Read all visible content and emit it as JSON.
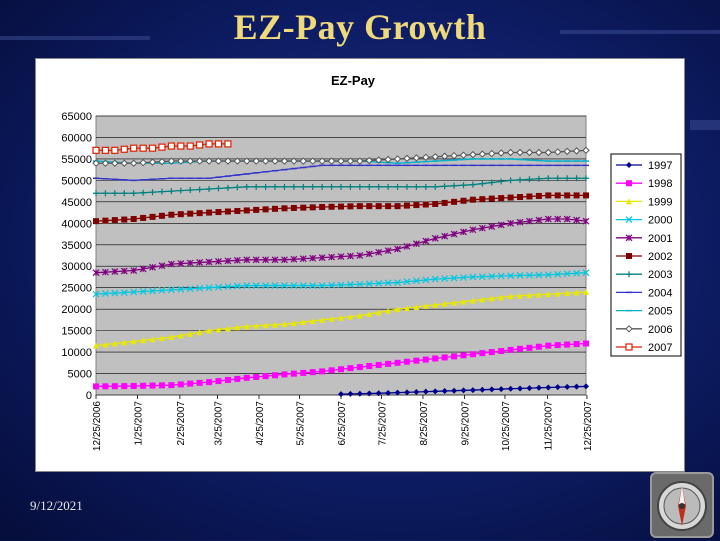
{
  "slide": {
    "title": "EZ-Pay Growth",
    "date": "9/12/2021"
  },
  "icons": {
    "compass": "compass-icon"
  },
  "chart_data": {
    "type": "line",
    "title": "EZ-Pay",
    "ylim": [
      0,
      65000
    ],
    "yticks": [
      0,
      5000,
      10000,
      15000,
      20000,
      25000,
      30000,
      35000,
      40000,
      45000,
      50000,
      55000,
      60000,
      65000
    ],
    "xlim": [
      0,
      52
    ],
    "x_tick_labels": [
      {
        "label": "12/25/2006",
        "x": 0
      },
      {
        "label": "1/25/2007",
        "x": 4.4
      },
      {
        "label": "2/25/2007",
        "x": 8.9
      },
      {
        "label": "3/25/2007",
        "x": 12.9
      },
      {
        "label": "4/25/2007",
        "x": 17.3
      },
      {
        "label": "5/25/2007",
        "x": 21.6
      },
      {
        "label": "6/25/2007",
        "x": 26
      },
      {
        "label": "7/25/2007",
        "x": 30.3
      },
      {
        "label": "8/25/2007",
        "x": 34.7
      },
      {
        "label": "9/25/2007",
        "x": 39.1
      },
      {
        "label": "10/25/2007",
        "x": 43.4
      },
      {
        "label": "11/25/2007",
        "x": 47.9
      },
      {
        "label": "12/25/2007",
        "x": 52.1
      }
    ],
    "plot_background": "#c0c0c0",
    "legend_position": "right",
    "series": [
      {
        "name": "1997",
        "color": "#00008b",
        "marker": "diamond",
        "x": [
          26,
          30,
          34,
          38,
          42,
          46,
          50,
          52
        ],
        "y": [
          200,
          400,
          700,
          1000,
          1300,
          1600,
          1900,
          2000
        ]
      },
      {
        "name": "1998",
        "color": "#ff00ff",
        "marker": "square",
        "x": [
          0,
          4,
          8,
          12,
          16,
          20,
          24,
          28,
          32,
          36,
          40,
          44,
          48,
          52
        ],
        "y": [
          2000,
          2100,
          2300,
          3000,
          4000,
          4800,
          5500,
          6500,
          7500,
          8500,
          9500,
          10500,
          11500,
          12000
        ]
      },
      {
        "name": "1999",
        "color": "#e8e800",
        "marker": "triangle",
        "x": [
          0,
          4,
          8,
          12,
          16,
          20,
          24,
          28,
          32,
          36,
          40,
          44,
          48,
          52
        ],
        "y": [
          11500,
          12500,
          13500,
          15000,
          16000,
          16500,
          17500,
          18500,
          20000,
          21000,
          22000,
          23000,
          23500,
          24000
        ]
      },
      {
        "name": "2000",
        "color": "#00c8e0",
        "marker": "x",
        "x": [
          0,
          4,
          8,
          12,
          16,
          20,
          24,
          28,
          32,
          36,
          40,
          44,
          48,
          52
        ],
        "y": [
          23500,
          24000,
          24500,
          25000,
          25500,
          25500,
          25500,
          25800,
          26200,
          27000,
          27500,
          27800,
          28000,
          28500
        ]
      },
      {
        "name": "2001",
        "color": "#800080",
        "marker": "star",
        "x": [
          0,
          4,
          8,
          12,
          16,
          20,
          24,
          28,
          32,
          36,
          40,
          44,
          48,
          50,
          52
        ],
        "y": [
          28500,
          29000,
          30500,
          31000,
          31500,
          31500,
          32000,
          32500,
          34000,
          36500,
          38500,
          40000,
          41000,
          41000,
          40500
        ]
      },
      {
        "name": "2002",
        "color": "#800000",
        "marker": "square",
        "x": [
          0,
          4,
          8,
          12,
          16,
          20,
          24,
          28,
          32,
          36,
          40,
          44,
          48,
          52
        ],
        "y": [
          40500,
          41000,
          42000,
          42500,
          43000,
          43500,
          43800,
          44000,
          44000,
          44500,
          45500,
          46000,
          46500,
          46500
        ]
      },
      {
        "name": "2003",
        "color": "#008080",
        "marker": "plus",
        "x": [
          0,
          4,
          8,
          12,
          16,
          20,
          24,
          28,
          32,
          36,
          40,
          44,
          48,
          52
        ],
        "y": [
          47000,
          47000,
          47500,
          48000,
          48500,
          48500,
          48500,
          48500,
          48500,
          48500,
          49000,
          50000,
          50500,
          50500
        ]
      },
      {
        "name": "2004",
        "color": "#3333cc",
        "marker": "dash",
        "x": [
          0,
          4,
          8,
          12,
          16,
          20,
          24,
          28,
          32,
          36,
          40,
          44,
          48,
          52
        ],
        "y": [
          50500,
          50000,
          50500,
          50500,
          51500,
          52500,
          53500,
          53500,
          53500,
          53500,
          53500,
          53500,
          53500,
          53500
        ]
      },
      {
        "name": "2005",
        "color": "#00b0c8",
        "marker": "dash",
        "x": [
          0,
          4,
          8,
          12,
          16,
          20,
          24,
          28,
          32,
          36,
          40,
          44,
          48,
          52
        ],
        "y": [
          54500,
          54000,
          54000,
          54500,
          54500,
          54500,
          54500,
          54500,
          54000,
          54500,
          55000,
          55000,
          54500,
          54500
        ]
      },
      {
        "name": "2006",
        "color": "#555555",
        "marker": "diamond-open",
        "x": [
          0,
          4,
          8,
          12,
          16,
          20,
          24,
          28,
          32,
          36,
          40,
          44,
          48,
          52
        ],
        "y": [
          54000,
          54000,
          54500,
          54500,
          54500,
          54500,
          54500,
          54500,
          55000,
          55500,
          56000,
          56500,
          56500,
          57000
        ]
      },
      {
        "name": "2007",
        "color": "#dd2200",
        "marker": "square-open",
        "x": [
          0,
          2,
          4,
          6,
          8,
          10,
          12,
          14
        ],
        "y": [
          57000,
          57000,
          57500,
          57500,
          58000,
          58000,
          58500,
          58500
        ]
      }
    ]
  }
}
